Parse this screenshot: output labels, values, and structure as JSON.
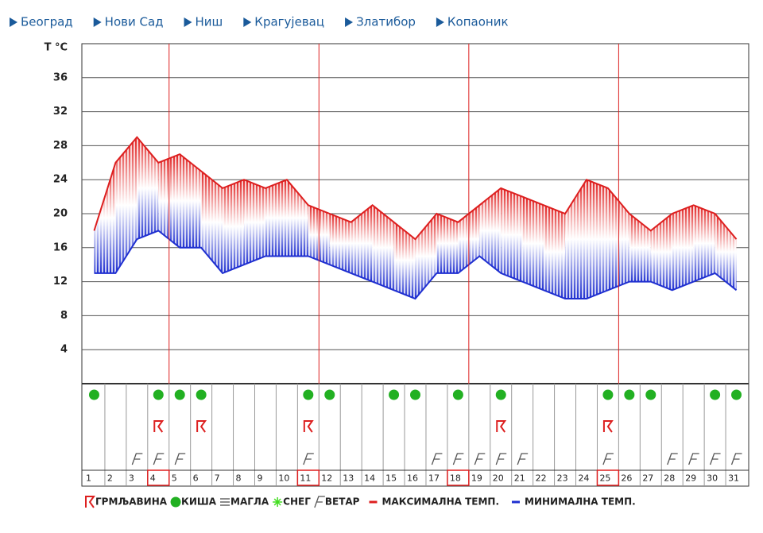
{
  "nav": [
    "Београд",
    "Нови Сад",
    "Ниш",
    "Крагујевац",
    "Златибор",
    "Копаоник"
  ],
  "chart_data": {
    "type": "line",
    "y_label": "T °C",
    "categories": [
      "1",
      "2",
      "3",
      "4",
      "5",
      "6",
      "7",
      "8",
      "9",
      "10",
      "11",
      "12",
      "13",
      "14",
      "15",
      "16",
      "17",
      "18",
      "19",
      "20",
      "21",
      "22",
      "23",
      "24",
      "25",
      "26",
      "27",
      "28",
      "29",
      "30",
      "31"
    ],
    "series": [
      {
        "name": "МАКСИМАЛНА ТЕМП.",
        "color": "#dd1f1f",
        "values": [
          18,
          26,
          29,
          26,
          27,
          25,
          23,
          24,
          23,
          24,
          21,
          20,
          19,
          21,
          19,
          17,
          20,
          19,
          21,
          23,
          22,
          21,
          20,
          24,
          23,
          20,
          18,
          20,
          21,
          20,
          17
        ]
      },
      {
        "name": "МИНИМАЛНА ТЕМП.",
        "color": "#1f2fd0",
        "values": [
          13,
          13,
          17,
          18,
          16,
          16,
          13,
          14,
          15,
          15,
          15,
          14,
          13,
          12,
          11,
          10,
          13,
          13,
          15,
          13,
          12,
          11,
          10,
          10,
          11,
          12,
          12,
          11,
          12,
          13,
          11
        ]
      }
    ],
    "ylim": [
      0,
      40
    ],
    "yticks": [
      4,
      8,
      12,
      16,
      20,
      24,
      28,
      32,
      36
    ],
    "grid": true,
    "highlight_days": [
      4,
      11,
      18,
      25
    ],
    "symbols": [
      {
        "name": "ГРМЉАВИНА",
        "kind": "thunder",
        "color": "#dd1f1f",
        "days": [
          4,
          6,
          11,
          20,
          25
        ]
      },
      {
        "name": "КИША",
        "kind": "rain",
        "color": "#22b022",
        "days": [
          1,
          4,
          5,
          6,
          11,
          12,
          15,
          16,
          18,
          20,
          25,
          26,
          27,
          30,
          31
        ]
      },
      {
        "name": "МАГЛА",
        "kind": "fog",
        "color": "#666666",
        "days": []
      },
      {
        "name": "СНЕГ",
        "kind": "snow",
        "color": "#44dd22",
        "days": []
      },
      {
        "name": "ВЕТАР",
        "kind": "wind",
        "color": "#555555",
        "days": [
          3,
          4,
          5,
          11,
          17,
          18,
          19,
          20,
          21,
          25,
          28,
          29,
          30,
          31
        ]
      }
    ]
  }
}
